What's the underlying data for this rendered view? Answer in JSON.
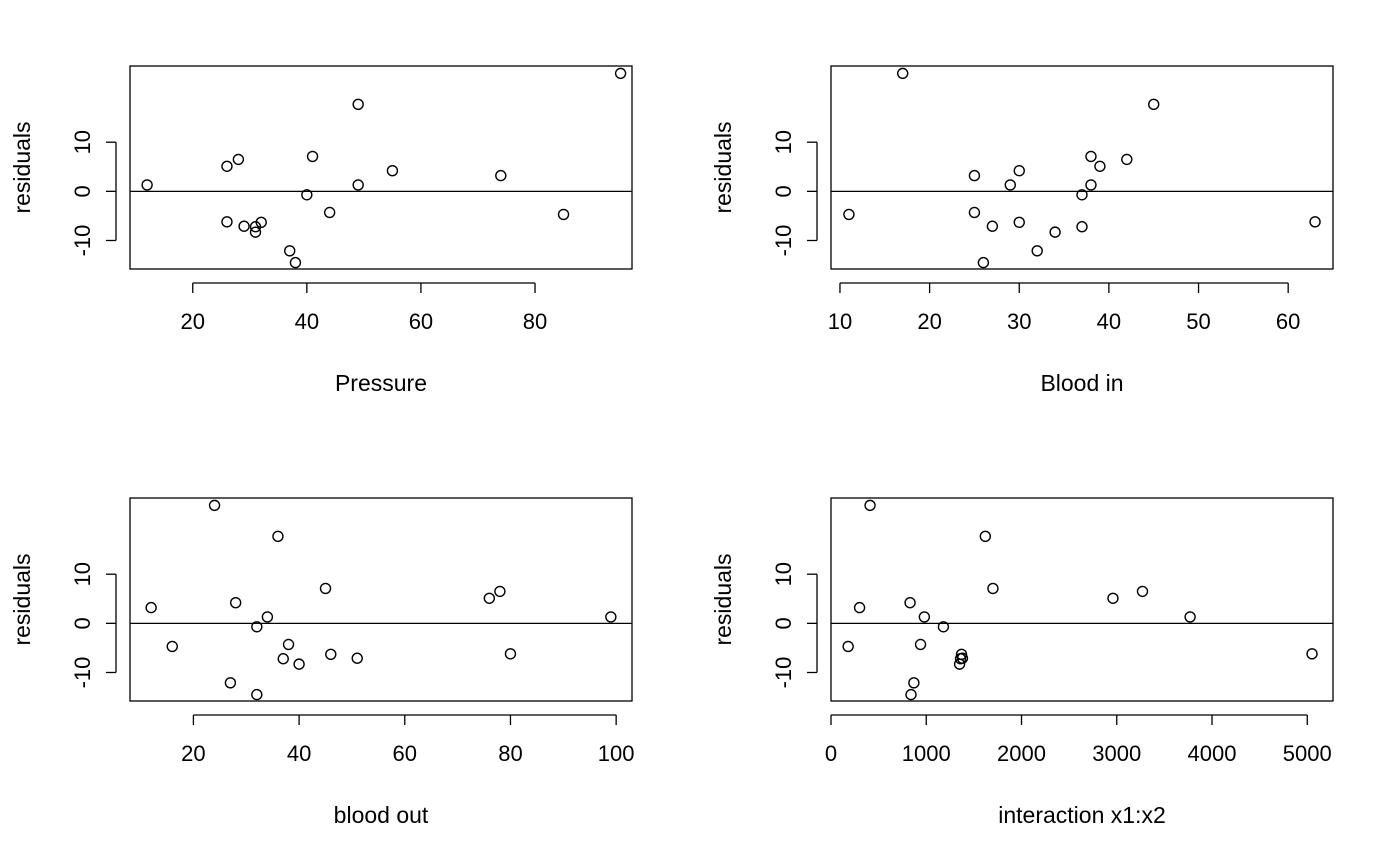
{
  "chart_data": [
    {
      "type": "scatter",
      "title": "",
      "xlabel": "Pressure",
      "ylabel": "residuals",
      "xlim": [
        9,
        97
      ],
      "ylim": [
        -15.8,
        25.5
      ],
      "xticks": [
        20,
        40,
        60,
        80
      ],
      "yticks": [
        -10,
        0,
        10
      ],
      "ytick_labels": [
        "-10",
        "0",
        "10"
      ],
      "hline": 0,
      "grid": false,
      "points": [
        {
          "x": 12,
          "y": 1.3
        },
        {
          "x": 26,
          "y": 5.1
        },
        {
          "x": 26,
          "y": -6.2
        },
        {
          "x": 28,
          "y": 6.5
        },
        {
          "x": 29,
          "y": -7.1
        },
        {
          "x": 31,
          "y": -7.2
        },
        {
          "x": 31,
          "y": -8.3
        },
        {
          "x": 32,
          "y": -6.3
        },
        {
          "x": 37,
          "y": -12.1
        },
        {
          "x": 38,
          "y": -14.5
        },
        {
          "x": 40,
          "y": -0.7
        },
        {
          "x": 41,
          "y": 7.1
        },
        {
          "x": 44,
          "y": -4.3
        },
        {
          "x": 49,
          "y": 17.7
        },
        {
          "x": 49,
          "y": 1.3
        },
        {
          "x": 55,
          "y": 4.2
        },
        {
          "x": 74,
          "y": 3.2
        },
        {
          "x": 85,
          "y": -4.7
        },
        {
          "x": 95,
          "y": 24.0
        }
      ]
    },
    {
      "type": "scatter",
      "title": "",
      "xlabel": "Blood in",
      "ylabel": "residuals",
      "xlim": [
        9,
        65
      ],
      "ylim": [
        -15.8,
        25.5
      ],
      "xticks": [
        10,
        20,
        30,
        40,
        50,
        60
      ],
      "yticks": [
        -10,
        0,
        10
      ],
      "ytick_labels": [
        "-10",
        "0",
        "10"
      ],
      "hline": 0,
      "grid": false,
      "points": [
        {
          "x": 11,
          "y": -4.7
        },
        {
          "x": 17,
          "y": 24.0
        },
        {
          "x": 25,
          "y": 3.2
        },
        {
          "x": 25,
          "y": -4.3
        },
        {
          "x": 26,
          "y": -14.5
        },
        {
          "x": 27,
          "y": -7.1
        },
        {
          "x": 29,
          "y": 1.3
        },
        {
          "x": 30,
          "y": 4.2
        },
        {
          "x": 30,
          "y": -6.3
        },
        {
          "x": 32,
          "y": -12.1
        },
        {
          "x": 34,
          "y": -8.3
        },
        {
          "x": 37,
          "y": -0.7
        },
        {
          "x": 37,
          "y": -7.2
        },
        {
          "x": 38,
          "y": 7.1
        },
        {
          "x": 38,
          "y": 1.3
        },
        {
          "x": 39,
          "y": 5.1
        },
        {
          "x": 42,
          "y": 6.5
        },
        {
          "x": 45,
          "y": 17.7
        },
        {
          "x": 63,
          "y": -6.2
        }
      ]
    },
    {
      "type": "scatter",
      "title": "",
      "xlabel": "blood out",
      "ylabel": "residuals",
      "xlim": [
        8,
        103
      ],
      "ylim": [
        -15.8,
        25.5
      ],
      "xticks": [
        20,
        40,
        60,
        80,
        100
      ],
      "yticks": [
        -10,
        0,
        10
      ],
      "ytick_labels": [
        "-10",
        "0",
        "10"
      ],
      "hline": 0,
      "grid": false,
      "points": [
        {
          "x": 12,
          "y": 3.2
        },
        {
          "x": 16,
          "y": -4.7
        },
        {
          "x": 24,
          "y": 24.0
        },
        {
          "x": 27,
          "y": -12.1
        },
        {
          "x": 28,
          "y": 4.2
        },
        {
          "x": 32,
          "y": -0.7
        },
        {
          "x": 32,
          "y": -14.5
        },
        {
          "x": 34,
          "y": 1.3
        },
        {
          "x": 36,
          "y": 17.7
        },
        {
          "x": 37,
          "y": -7.2
        },
        {
          "x": 38,
          "y": -4.3
        },
        {
          "x": 40,
          "y": -8.3
        },
        {
          "x": 45,
          "y": 7.1
        },
        {
          "x": 46,
          "y": -6.3
        },
        {
          "x": 51,
          "y": -7.1
        },
        {
          "x": 76,
          "y": 5.1
        },
        {
          "x": 78,
          "y": 6.5
        },
        {
          "x": 80,
          "y": -6.2
        },
        {
          "x": 99,
          "y": 1.3
        }
      ]
    },
    {
      "type": "scatter",
      "title": "",
      "xlabel": "interaction x1:x2",
      "ylabel": "residuals",
      "xlim": [
        0,
        5270
      ],
      "ylim": [
        -15.8,
        25.5
      ],
      "xticks": [
        0,
        1000,
        2000,
        3000,
        4000,
        5000
      ],
      "yticks": [
        -10,
        0,
        10
      ],
      "ytick_labels": [
        "-10",
        "0",
        "10"
      ],
      "hline": 0,
      "grid": false,
      "points": [
        {
          "x": 180,
          "y": -4.7
        },
        {
          "x": 300,
          "y": 3.2
        },
        {
          "x": 410,
          "y": 24.0
        },
        {
          "x": 830,
          "y": 4.2
        },
        {
          "x": 840,
          "y": -14.5
        },
        {
          "x": 870,
          "y": -12.1
        },
        {
          "x": 940,
          "y": -4.3
        },
        {
          "x": 980,
          "y": 1.3
        },
        {
          "x": 1180,
          "y": -0.7
        },
        {
          "x": 1350,
          "y": -8.3
        },
        {
          "x": 1360,
          "y": -7.2
        },
        {
          "x": 1370,
          "y": -6.3
        },
        {
          "x": 1380,
          "y": -7.1
        },
        {
          "x": 1620,
          "y": 17.7
        },
        {
          "x": 1700,
          "y": 7.1
        },
        {
          "x": 2960,
          "y": 5.1
        },
        {
          "x": 3270,
          "y": 6.5
        },
        {
          "x": 3770,
          "y": 1.3
        },
        {
          "x": 5050,
          "y": -6.2
        }
      ]
    }
  ]
}
